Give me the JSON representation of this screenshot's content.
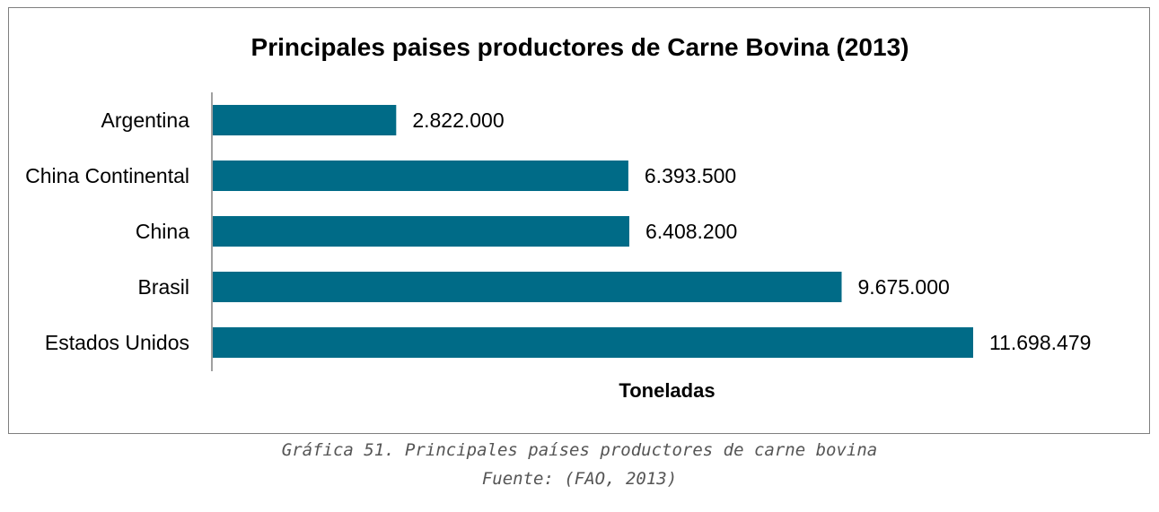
{
  "chart_data": {
    "type": "bar",
    "orientation": "horizontal",
    "title": "Principales paises productores de Carne Bovina (2013)",
    "xlabel": "Toneladas",
    "ylabel": "",
    "categories": [
      "Argentina",
      "China Continental",
      "China",
      "Brasil",
      "Estados Unidos"
    ],
    "values": [
      2822000,
      6393500,
      6408200,
      9675000,
      11698479
    ],
    "value_labels": [
      "2.822.000",
      "6.393.500",
      "6.408.200",
      "9.675.000",
      "11.698.479"
    ],
    "xlim": [
      0,
      11698479
    ],
    "grid": false,
    "legend": "none",
    "bar_color": "#006B87"
  },
  "caption": {
    "line1": "Gráfica 51. Principales países productores de carne bovina",
    "line2": "Fuente: (FAO, 2013)"
  }
}
